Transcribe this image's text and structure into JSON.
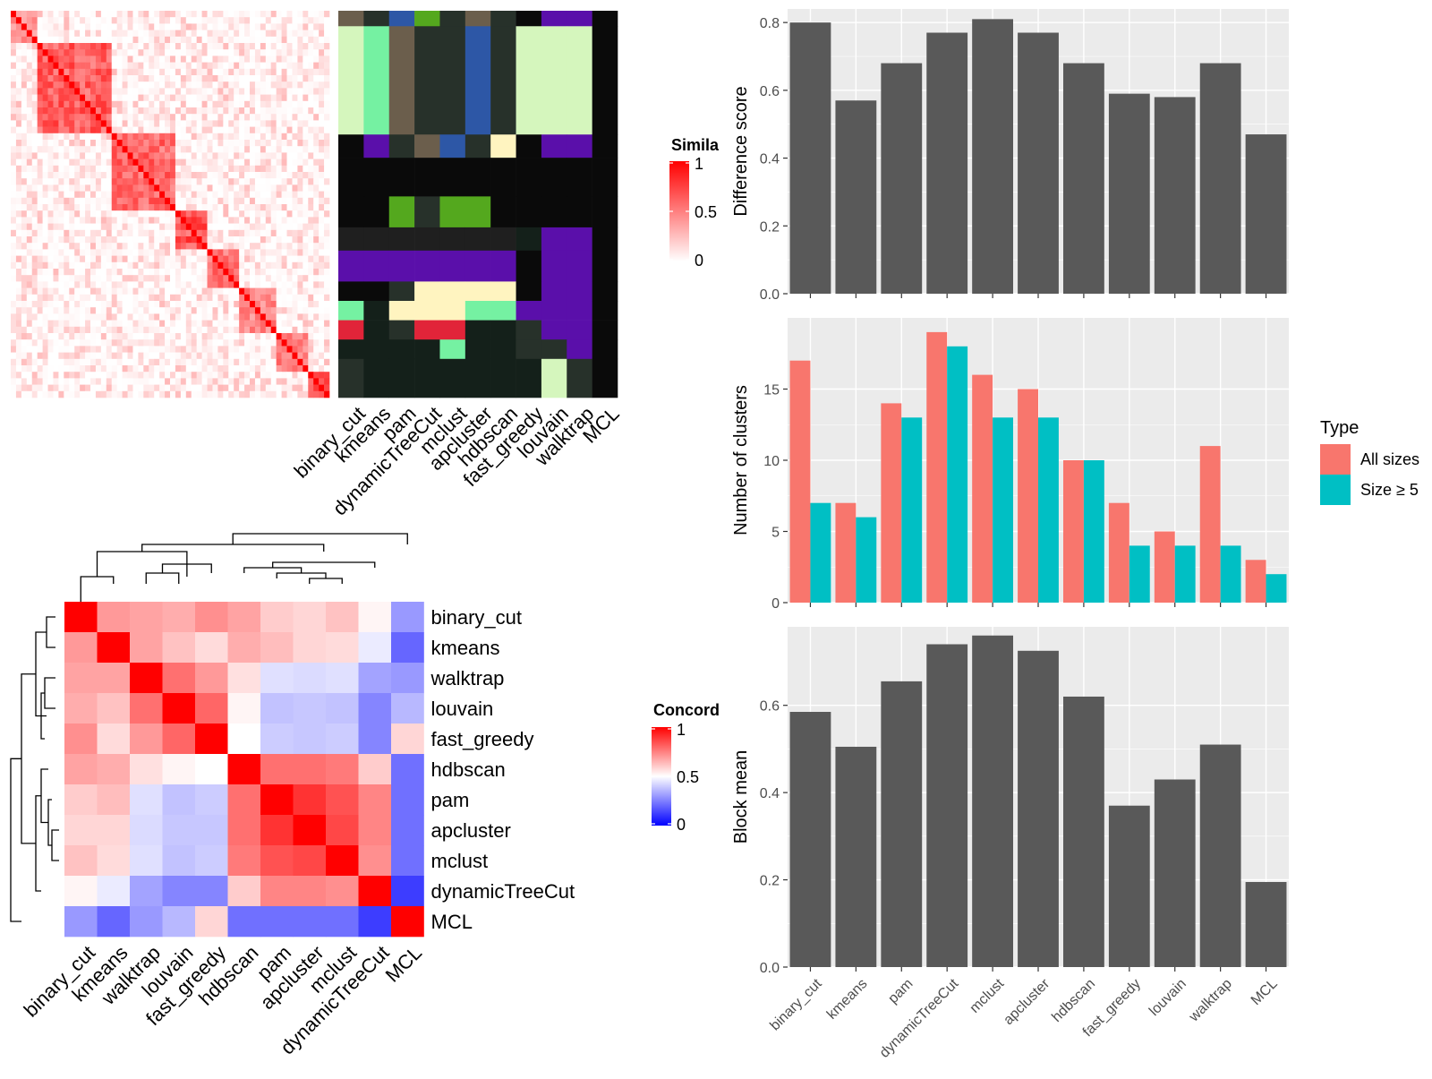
{
  "colors": {
    "bar": "#595959",
    "panel_bg": "#ebebeb",
    "grid": "#ffffff",
    "all_sizes": "#F8766D",
    "size_ge5": "#00BFC4",
    "sim_high": "#ff0000",
    "sim_low": "#ffffff",
    "conc_low": "#0000ff"
  },
  "methods_axis": [
    "binary_cut",
    "kmeans",
    "pam",
    "dynamicTreeCut",
    "mclust",
    "apcluster",
    "hdbscan",
    "fast_greedy",
    "louvain",
    "walktrap",
    "MCL"
  ],
  "similarity_heatmap": {
    "legend_title": "Simila",
    "legend_ticks": [
      "1",
      "0.5",
      "0"
    ],
    "columns": [
      "binary_cut",
      "kmeans",
      "pam",
      "dynamicTreeCut",
      "mclust",
      "apcluster",
      "hdbscan",
      "fast_greedy",
      "louvain",
      "walktrap",
      "MCL"
    ],
    "blocks": [
      {
        "start": 0.0,
        "end": 0.08,
        "strength": 0.55
      },
      {
        "start": 0.08,
        "end": 0.32,
        "strength": 0.8
      },
      {
        "start": 0.32,
        "end": 0.52,
        "strength": 0.75
      },
      {
        "start": 0.52,
        "end": 0.62,
        "strength": 0.85
      },
      {
        "start": 0.62,
        "end": 0.72,
        "strength": 0.7
      },
      {
        "start": 0.72,
        "end": 0.84,
        "strength": 0.6
      },
      {
        "start": 0.84,
        "end": 0.94,
        "strength": 0.65
      },
      {
        "start": 0.94,
        "end": 1.0,
        "strength": 0.9
      }
    ],
    "cluster_palette": [
      "#d5f6bd",
      "#0a0a0a",
      "#5a0faa",
      "#54a81e",
      "#2d57a6",
      "#fff4c0",
      "#75f1a2",
      "#e12439",
      "#6b5e4c",
      "#27312a",
      "#1f1f1f",
      "#14201a"
    ],
    "cluster_bands": [
      {
        "start": 0.0,
        "end": 0.04,
        "cells": [
          8,
          9,
          4,
          3,
          9,
          8,
          9,
          1,
          2,
          2,
          1
        ]
      },
      {
        "start": 0.04,
        "end": 0.32,
        "cells": [
          0,
          6,
          8,
          9,
          9,
          4,
          9,
          0,
          0,
          0,
          1
        ]
      },
      {
        "start": 0.32,
        "end": 0.38,
        "cells": [
          1,
          2,
          9,
          8,
          4,
          9,
          5,
          1,
          2,
          2,
          1
        ]
      },
      {
        "start": 0.38,
        "end": 0.48,
        "cells": [
          1,
          1,
          1,
          1,
          1,
          1,
          1,
          1,
          1,
          1,
          1
        ]
      },
      {
        "start": 0.48,
        "end": 0.56,
        "cells": [
          1,
          1,
          3,
          9,
          3,
          3,
          1,
          1,
          1,
          1,
          1
        ]
      },
      {
        "start": 0.56,
        "end": 0.62,
        "cells": [
          10,
          10,
          10,
          10,
          10,
          10,
          10,
          11,
          2,
          2,
          1
        ]
      },
      {
        "start": 0.62,
        "end": 0.7,
        "cells": [
          2,
          2,
          2,
          2,
          2,
          2,
          2,
          1,
          2,
          2,
          1
        ]
      },
      {
        "start": 0.7,
        "end": 0.75,
        "cells": [
          1,
          1,
          9,
          5,
          5,
          5,
          5,
          1,
          2,
          2,
          1
        ]
      },
      {
        "start": 0.75,
        "end": 0.8,
        "cells": [
          6,
          11,
          5,
          5,
          5,
          6,
          6,
          2,
          2,
          2,
          1
        ]
      },
      {
        "start": 0.8,
        "end": 0.85,
        "cells": [
          7,
          11,
          9,
          7,
          7,
          11,
          11,
          9,
          2,
          2,
          1
        ]
      },
      {
        "start": 0.85,
        "end": 0.9,
        "cells": [
          11,
          11,
          11,
          11,
          6,
          11,
          11,
          9,
          9,
          2,
          1
        ]
      },
      {
        "start": 0.9,
        "end": 1.0,
        "cells": [
          9,
          11,
          11,
          11,
          11,
          11,
          11,
          11,
          0,
          9,
          1
        ]
      }
    ]
  },
  "concordance": {
    "legend_title": "Concord",
    "legend_ticks": [
      "1",
      "0.5",
      "0"
    ],
    "labels": [
      "binary_cut",
      "kmeans",
      "walktrap",
      "louvain",
      "fast_greedy",
      "hdbscan",
      "pam",
      "apcluster",
      "mclust",
      "dynamicTreeCut",
      "MCL"
    ],
    "matrix": [
      [
        1.0,
        0.7,
        0.68,
        0.66,
        0.72,
        0.68,
        0.6,
        0.58,
        0.62,
        0.52,
        0.3
      ],
      [
        0.7,
        1.0,
        0.68,
        0.62,
        0.57,
        0.66,
        0.63,
        0.58,
        0.57,
        0.46,
        0.2
      ],
      [
        0.68,
        0.68,
        1.0,
        0.78,
        0.7,
        0.56,
        0.44,
        0.43,
        0.44,
        0.32,
        0.3
      ],
      [
        0.66,
        0.62,
        0.78,
        1.0,
        0.8,
        0.52,
        0.38,
        0.39,
        0.38,
        0.26,
        0.36
      ],
      [
        0.72,
        0.57,
        0.7,
        0.8,
        1.0,
        0.5,
        0.4,
        0.39,
        0.4,
        0.26,
        0.58
      ],
      [
        0.68,
        0.66,
        0.56,
        0.52,
        0.5,
        1.0,
        0.78,
        0.78,
        0.76,
        0.6,
        0.22
      ],
      [
        0.6,
        0.63,
        0.44,
        0.38,
        0.4,
        0.78,
        1.0,
        0.9,
        0.84,
        0.74,
        0.22
      ],
      [
        0.58,
        0.58,
        0.43,
        0.39,
        0.39,
        0.78,
        0.9,
        1.0,
        0.86,
        0.74,
        0.22
      ],
      [
        0.62,
        0.57,
        0.44,
        0.38,
        0.4,
        0.76,
        0.84,
        0.86,
        1.0,
        0.72,
        0.22
      ],
      [
        0.52,
        0.46,
        0.32,
        0.26,
        0.26,
        0.6,
        0.74,
        0.74,
        0.72,
        1.0,
        0.12
      ],
      [
        0.3,
        0.2,
        0.3,
        0.36,
        0.58,
        0.22,
        0.22,
        0.22,
        0.22,
        0.12,
        1.0
      ]
    ]
  },
  "chart_data": [
    {
      "type": "bar",
      "categories": [
        "binary_cut",
        "kmeans",
        "pam",
        "dynamicTreeCut",
        "mclust",
        "apcluster",
        "hdbscan",
        "fast_greedy",
        "louvain",
        "walktrap",
        "MCL"
      ],
      "values": [
        0.8,
        0.57,
        0.68,
        0.77,
        0.81,
        0.77,
        0.68,
        0.59,
        0.58,
        0.68,
        0.47
      ],
      "xlabel": "",
      "ylabel": "Difference score",
      "ylim": [
        0,
        0.84
      ],
      "yticks": [
        0.0,
        0.2,
        0.4,
        0.6,
        0.8
      ],
      "grid": true
    },
    {
      "type": "bar",
      "categories": [
        "binary_cut",
        "kmeans",
        "pam",
        "dynamicTreeCut",
        "mclust",
        "apcluster",
        "hdbscan",
        "fast_greedy",
        "louvain",
        "walktrap",
        "MCL"
      ],
      "series": [
        {
          "name": "All sizes",
          "values": [
            17,
            7,
            14,
            19,
            16,
            15,
            10,
            7,
            5,
            11,
            3
          ]
        },
        {
          "name": "Size ≥ 5",
          "values": [
            7,
            6,
            13,
            18,
            13,
            13,
            10,
            4,
            4,
            4,
            2
          ]
        }
      ],
      "xlabel": "",
      "ylabel": "Number of clusters",
      "ylim": [
        0,
        20
      ],
      "yticks": [
        0,
        5,
        10,
        15
      ],
      "legend_title": "Type",
      "legend_position": "right",
      "grid": true
    },
    {
      "type": "bar",
      "categories": [
        "binary_cut",
        "kmeans",
        "pam",
        "dynamicTreeCut",
        "mclust",
        "apcluster",
        "hdbscan",
        "fast_greedy",
        "louvain",
        "walktrap",
        "MCL"
      ],
      "values": [
        0.585,
        0.505,
        0.655,
        0.74,
        0.76,
        0.725,
        0.62,
        0.37,
        0.43,
        0.51,
        0.195
      ],
      "xlabel": "",
      "ylabel": "Block mean",
      "ylim": [
        0,
        0.78
      ],
      "yticks": [
        0.0,
        0.2,
        0.4,
        0.6
      ],
      "grid": true
    }
  ]
}
